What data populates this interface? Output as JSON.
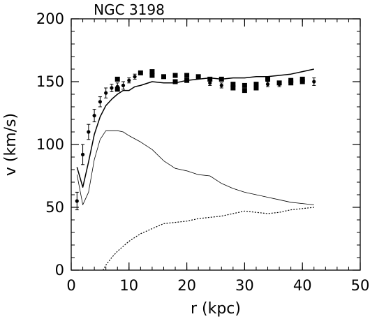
{
  "chart_data": {
    "type": "scatter",
    "title": "NGC 3198",
    "xlabel": "r (kpc)",
    "ylabel": "v (km/s)",
    "xlim": [
      0,
      50
    ],
    "ylim": [
      0,
      200
    ],
    "x_ticks": [
      0,
      10,
      20,
      30,
      40,
      50
    ],
    "y_ticks": [
      0,
      50,
      100,
      150,
      200
    ],
    "x_minor_step": 2,
    "y_minor_step": 10,
    "grid": false,
    "series": [
      {
        "kind": "points",
        "marker": "circle",
        "points": [
          {
            "x": 1.0,
            "y": 55,
            "err": 7
          },
          {
            "x": 2.0,
            "y": 92,
            "err": 8
          },
          {
            "x": 3.0,
            "y": 110,
            "err": 6
          },
          {
            "x": 4.0,
            "y": 123,
            "err": 5
          },
          {
            "x": 5.0,
            "y": 134,
            "err": 4
          },
          {
            "x": 6.0,
            "y": 141,
            "err": 4
          },
          {
            "x": 7.0,
            "y": 145,
            "err": 3
          },
          {
            "x": 8.0,
            "y": 146,
            "err": 3
          },
          {
            "x": 9.0,
            "y": 147,
            "err": 3
          },
          {
            "x": 10.0,
            "y": 151,
            "err": 2
          },
          {
            "x": 11.0,
            "y": 154,
            "err": 2
          },
          {
            "x": 24.0,
            "y": 149,
            "err": 2
          },
          {
            "x": 26.0,
            "y": 147,
            "err": 2
          },
          {
            "x": 34.0,
            "y": 148,
            "err": 2
          },
          {
            "x": 36.0,
            "y": 148,
            "err": 2
          },
          {
            "x": 42.0,
            "y": 150,
            "err": 3
          }
        ]
      },
      {
        "kind": "points",
        "marker": "square",
        "points": [
          {
            "x": 8.0,
            "y": 152
          },
          {
            "x": 8.0,
            "y": 144
          },
          {
            "x": 12.0,
            "y": 157
          },
          {
            "x": 14.0,
            "y": 158
          },
          {
            "x": 14.0,
            "y": 155
          },
          {
            "x": 16.0,
            "y": 154
          },
          {
            "x": 18.0,
            "y": 155
          },
          {
            "x": 18.0,
            "y": 150
          },
          {
            "x": 20.0,
            "y": 155
          },
          {
            "x": 20.0,
            "y": 151
          },
          {
            "x": 22.0,
            "y": 154
          },
          {
            "x": 24.0,
            "y": 152
          },
          {
            "x": 26.0,
            "y": 152
          },
          {
            "x": 28.0,
            "y": 148
          },
          {
            "x": 28.0,
            "y": 145
          },
          {
            "x": 30.0,
            "y": 147
          },
          {
            "x": 30.0,
            "y": 143
          },
          {
            "x": 32.0,
            "y": 148
          },
          {
            "x": 32.0,
            "y": 145
          },
          {
            "x": 34.0,
            "y": 152
          },
          {
            "x": 36.0,
            "y": 149
          },
          {
            "x": 38.0,
            "y": 151
          },
          {
            "x": 38.0,
            "y": 149
          },
          {
            "x": 40.0,
            "y": 152
          },
          {
            "x": 40.0,
            "y": 150
          }
        ]
      },
      {
        "kind": "line",
        "style": "solid",
        "stroke_width": 1.5,
        "x": [
          1,
          2,
          3,
          4,
          5,
          6,
          7,
          8,
          9,
          10,
          11,
          12,
          14,
          16,
          18,
          20,
          22,
          24,
          26,
          28,
          30,
          32,
          34,
          36,
          38,
          40,
          42
        ],
        "y": [
          82,
          66,
          86,
          108,
          122,
          131,
          136,
          140,
          143,
          143,
          146,
          147,
          150,
          149,
          149,
          151,
          152,
          153,
          152,
          153,
          153,
          154,
          154,
          155,
          156,
          158,
          160
        ]
      },
      {
        "kind": "line",
        "style": "solid",
        "stroke_width": 0.8,
        "x": [
          1,
          2,
          3,
          4,
          5,
          6,
          7,
          8,
          9,
          10,
          12,
          14,
          16,
          18,
          20,
          22,
          24,
          26,
          28,
          30,
          32,
          34,
          36,
          38,
          40,
          42
        ],
        "y": [
          76,
          52,
          62,
          88,
          104,
          111,
          111,
          111,
          110,
          107,
          102,
          96,
          87,
          81,
          79,
          76,
          75,
          69,
          65,
          62,
          60,
          58,
          56,
          54,
          53,
          52
        ]
      },
      {
        "kind": "line",
        "style": "dotted",
        "stroke_width": 1.2,
        "x": [
          5.5,
          6,
          7,
          8,
          9,
          10,
          12,
          14,
          16,
          18,
          20,
          22,
          24,
          26,
          28,
          30,
          32,
          34,
          36,
          38,
          40,
          42
        ],
        "y": [
          0,
          4,
          10,
          15,
          19,
          23,
          29,
          33,
          37,
          38,
          39,
          41,
          42,
          43,
          45,
          47,
          46,
          45,
          46,
          48,
          49,
          50
        ]
      }
    ]
  }
}
